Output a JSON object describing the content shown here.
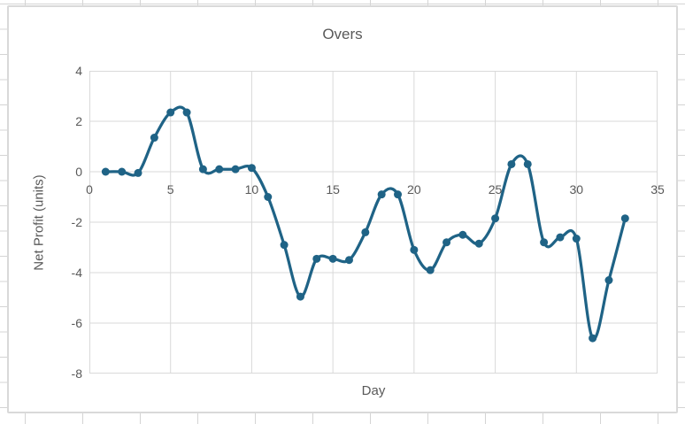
{
  "chart_data": {
    "type": "line",
    "title": "Overs",
    "xlabel": "Day",
    "ylabel": "Net Profit (units)",
    "smooth": true,
    "grid": true,
    "legend": false,
    "marker": "circle",
    "line_color": "#1f6386",
    "grid_color": "#d9d9d9",
    "text_color": "#595959",
    "xlim": [
      0,
      35
    ],
    "ylim": [
      -8,
      4
    ],
    "x_ticks": [
      0,
      5,
      10,
      15,
      20,
      25,
      30,
      35
    ],
    "y_ticks": [
      4,
      2,
      0,
      -2,
      -4,
      -6,
      -8
    ],
    "x_axis_label_row_at_value": 0,
    "x": [
      1,
      2,
      3,
      4,
      5,
      6,
      7,
      8,
      9,
      10,
      11,
      12,
      13,
      14,
      15,
      16,
      17,
      18,
      19,
      20,
      21,
      22,
      23,
      24,
      25,
      26,
      27,
      28,
      29,
      30,
      31,
      32,
      33
    ],
    "values": [
      0,
      0,
      -0.05,
      1.35,
      2.35,
      2.35,
      0.1,
      0.1,
      0.1,
      0.15,
      -1.0,
      -2.9,
      -4.95,
      -3.45,
      -3.45,
      -3.5,
      -2.4,
      -0.9,
      -0.9,
      -3.1,
      -3.9,
      -2.8,
      -2.5,
      -2.85,
      -1.85,
      0.3,
      0.3,
      -2.8,
      -2.6,
      -2.65,
      -6.6,
      -4.3,
      -1.85
    ]
  }
}
